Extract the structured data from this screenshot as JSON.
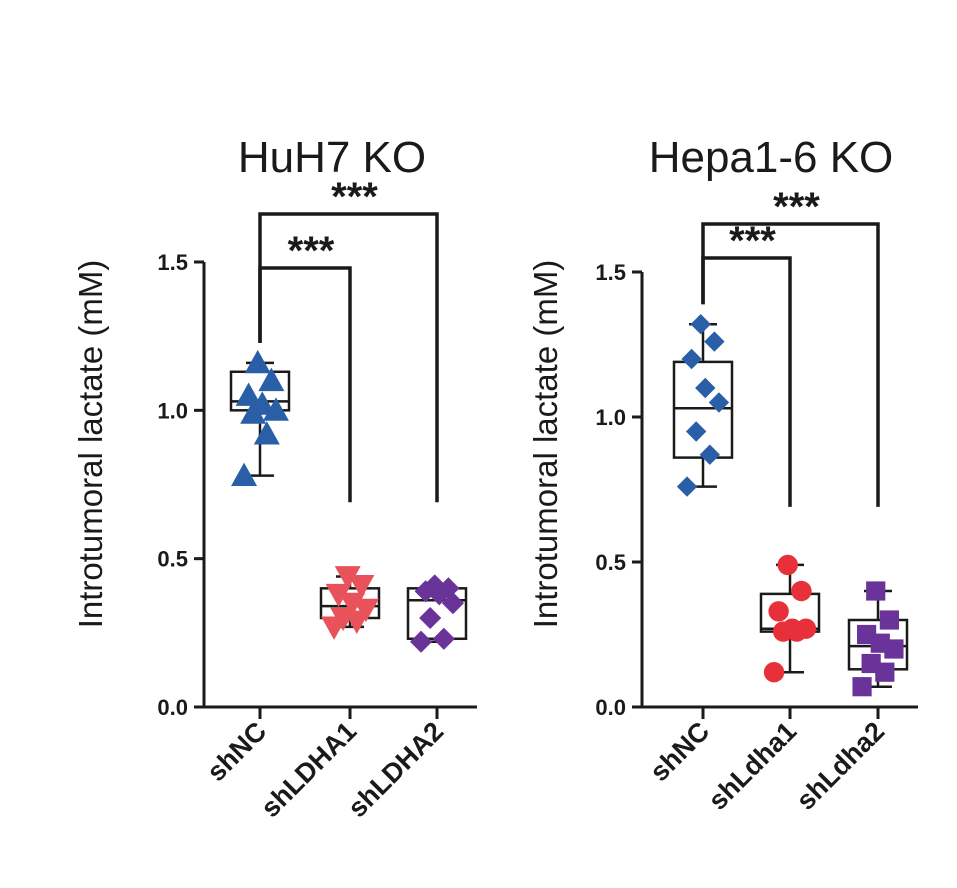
{
  "chart_data": [
    {
      "type": "box",
      "title": "HuH7 KO",
      "ylabel": "Introtumoral lactate (mM)",
      "ylim": [
        0,
        1.5
      ],
      "yticks": [
        "0.0",
        "0.5",
        "1.0",
        "1.5"
      ],
      "categories": [
        "shNC",
        "shLDHA1",
        "shLDHA2"
      ],
      "groups": [
        {
          "name": "shNC",
          "color": "#2a5fa8",
          "marker": "triangle-up",
          "values": [
            0.78,
            0.92,
            0.99,
            1.0,
            1.02,
            1.05,
            1.1,
            1.16
          ],
          "min": 0.78,
          "q1": 1.0,
          "median": 1.03,
          "q3": 1.13,
          "max": 1.16
        },
        {
          "name": "shLDHA1",
          "color": "#e8525a",
          "marker": "triangle-down",
          "values": [
            0.27,
            0.29,
            0.3,
            0.33,
            0.35,
            0.38,
            0.41,
            0.44
          ],
          "min": 0.27,
          "q1": 0.3,
          "median": 0.34,
          "q3": 0.4,
          "max": 0.44
        },
        {
          "name": "shLDHA2",
          "color": "#6a339a",
          "marker": "diamond",
          "values": [
            0.22,
            0.23,
            0.3,
            0.35,
            0.38,
            0.39,
            0.4,
            0.41
          ],
          "min": 0.22,
          "q1": 0.23,
          "median": 0.36,
          "q3": 0.4,
          "max": 0.41
        }
      ],
      "comparisons": [
        {
          "from": "shNC",
          "to": "shLDHA1",
          "label": "***"
        },
        {
          "from": "shNC",
          "to": "shLDHA2",
          "label": "***"
        }
      ],
      "grid": false
    },
    {
      "type": "box",
      "title": "Hepa1-6 KO",
      "ylabel": "Introtumoral lactate (mM)",
      "ylim": [
        0,
        1.5
      ],
      "yticks": [
        "0.0",
        "0.5",
        "1.0",
        "1.5"
      ],
      "categories": [
        "shNC",
        "shLdha1",
        "shLdha2"
      ],
      "groups": [
        {
          "name": "shNC",
          "color": "#2a5fa8",
          "marker": "diamond",
          "values": [
            0.76,
            0.87,
            0.95,
            1.05,
            1.1,
            1.2,
            1.26,
            1.32
          ],
          "min": 0.76,
          "q1": 0.86,
          "median": 1.03,
          "q3": 1.19,
          "max": 1.32
        },
        {
          "name": "shLdha1",
          "color": "#e8303a",
          "marker": "circle",
          "values": [
            0.12,
            0.26,
            0.26,
            0.27,
            0.27,
            0.33,
            0.4,
            0.49
          ],
          "min": 0.12,
          "q1": 0.26,
          "median": 0.27,
          "q3": 0.39,
          "max": 0.49
        },
        {
          "name": "shLdha2",
          "color": "#6a339a",
          "marker": "square",
          "values": [
            0.07,
            0.12,
            0.15,
            0.2,
            0.22,
            0.25,
            0.3,
            0.4
          ],
          "min": 0.07,
          "q1": 0.13,
          "median": 0.21,
          "q3": 0.3,
          "max": 0.4
        }
      ],
      "comparisons": [
        {
          "from": "shNC",
          "to": "shLdha1",
          "label": "***"
        },
        {
          "from": "shNC",
          "to": "shLdha2",
          "label": "***"
        }
      ],
      "grid": false
    }
  ]
}
